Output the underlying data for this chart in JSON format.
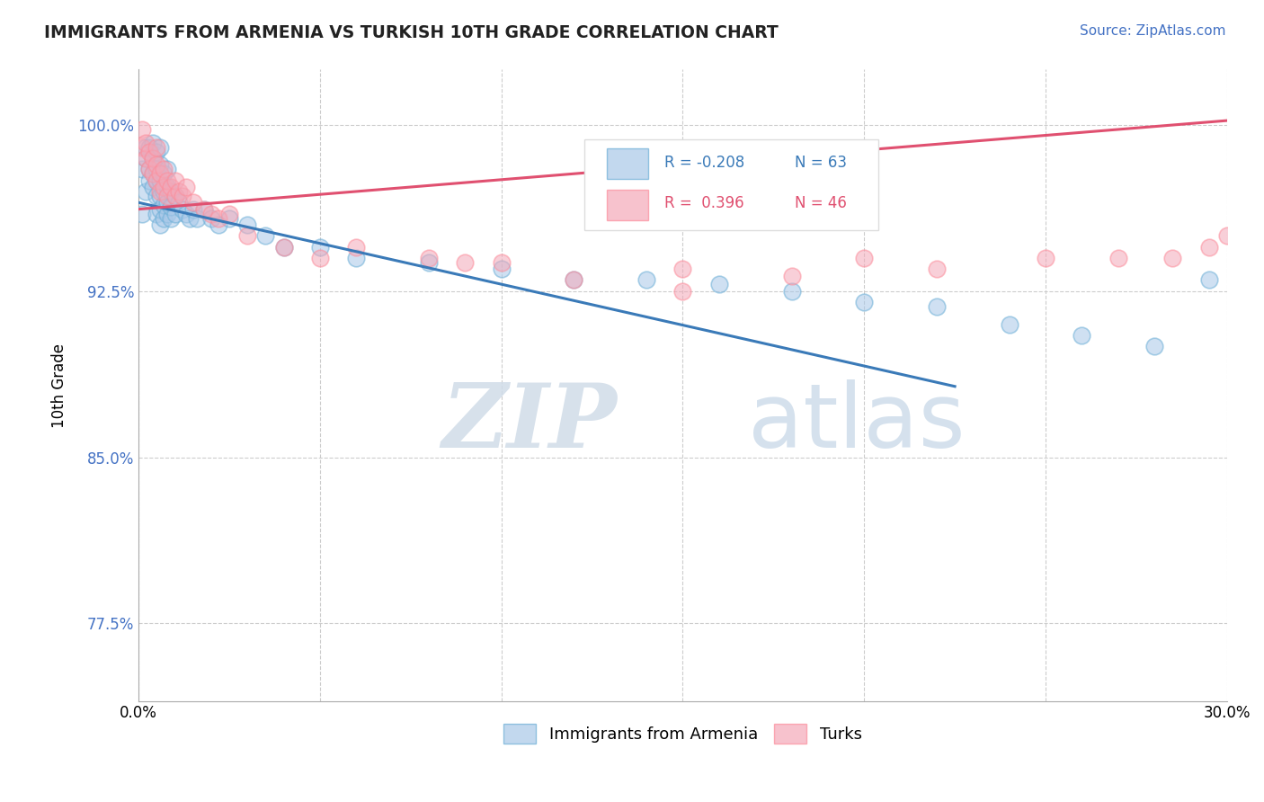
{
  "title": "IMMIGRANTS FROM ARMENIA VS TURKISH 10TH GRADE CORRELATION CHART",
  "source_text": "Source: ZipAtlas.com",
  "ylabel": "10th Grade",
  "xmin": 0.0,
  "xmax": 0.3,
  "ymin": 0.74,
  "ymax": 1.025,
  "ytick_vals": [
    0.775,
    0.85,
    0.925,
    1.0
  ],
  "ytick_labels": [
    "77.5%",
    "85.0%",
    "92.5%",
    "100.0%"
  ],
  "blue_color": "#a8c8e8",
  "pink_color": "#f4a8b8",
  "blue_edge_color": "#6baed6",
  "pink_edge_color": "#fc8d9b",
  "blue_line_color": "#3a7ab8",
  "pink_line_color": "#e05070",
  "watermark_zip": "ZIP",
  "watermark_atlas": "atlas",
  "blue_scatter_x": [
    0.001,
    0.001,
    0.002,
    0.002,
    0.002,
    0.003,
    0.003,
    0.003,
    0.004,
    0.004,
    0.004,
    0.004,
    0.005,
    0.005,
    0.005,
    0.005,
    0.005,
    0.006,
    0.006,
    0.006,
    0.006,
    0.006,
    0.006,
    0.007,
    0.007,
    0.007,
    0.007,
    0.008,
    0.008,
    0.008,
    0.008,
    0.009,
    0.009,
    0.009,
    0.01,
    0.01,
    0.011,
    0.012,
    0.013,
    0.014,
    0.015,
    0.016,
    0.018,
    0.02,
    0.022,
    0.025,
    0.03,
    0.035,
    0.04,
    0.05,
    0.06,
    0.08,
    0.1,
    0.12,
    0.14,
    0.16,
    0.18,
    0.2,
    0.22,
    0.24,
    0.26,
    0.28,
    0.295
  ],
  "blue_scatter_y": [
    0.96,
    0.98,
    0.97,
    0.985,
    0.99,
    0.975,
    0.98,
    0.99,
    0.972,
    0.978,
    0.985,
    0.992,
    0.96,
    0.968,
    0.975,
    0.98,
    0.988,
    0.955,
    0.962,
    0.968,
    0.975,
    0.982,
    0.99,
    0.958,
    0.964,
    0.97,
    0.978,
    0.96,
    0.965,
    0.972,
    0.98,
    0.958,
    0.963,
    0.97,
    0.96,
    0.968,
    0.965,
    0.962,
    0.96,
    0.958,
    0.962,
    0.958,
    0.962,
    0.958,
    0.955,
    0.958,
    0.955,
    0.95,
    0.945,
    0.945,
    0.94,
    0.938,
    0.935,
    0.93,
    0.93,
    0.928,
    0.925,
    0.92,
    0.918,
    0.91,
    0.905,
    0.9,
    0.93
  ],
  "pink_scatter_x": [
    0.001,
    0.001,
    0.002,
    0.002,
    0.003,
    0.003,
    0.004,
    0.004,
    0.005,
    0.005,
    0.005,
    0.006,
    0.006,
    0.007,
    0.007,
    0.008,
    0.008,
    0.009,
    0.01,
    0.01,
    0.011,
    0.012,
    0.013,
    0.015,
    0.018,
    0.02,
    0.022,
    0.025,
    0.03,
    0.04,
    0.05,
    0.06,
    0.08,
    0.1,
    0.12,
    0.15,
    0.18,
    0.2,
    0.22,
    0.25,
    0.27,
    0.285,
    0.295,
    0.3,
    0.15,
    0.09
  ],
  "pink_scatter_y": [
    0.99,
    0.998,
    0.985,
    0.992,
    0.98,
    0.988,
    0.978,
    0.985,
    0.975,
    0.982,
    0.99,
    0.97,
    0.978,
    0.972,
    0.98,
    0.968,
    0.975,
    0.972,
    0.968,
    0.975,
    0.97,
    0.968,
    0.972,
    0.965,
    0.962,
    0.96,
    0.958,
    0.96,
    0.95,
    0.945,
    0.94,
    0.945,
    0.94,
    0.938,
    0.93,
    0.935,
    0.932,
    0.94,
    0.935,
    0.94,
    0.94,
    0.94,
    0.945,
    0.95,
    0.925,
    0.938
  ],
  "blue_line_x": [
    0.0,
    0.225
  ],
  "blue_line_y": [
    0.965,
    0.882
  ],
  "pink_line_x": [
    0.0,
    0.3
  ],
  "pink_line_y": [
    0.962,
    1.002
  ]
}
